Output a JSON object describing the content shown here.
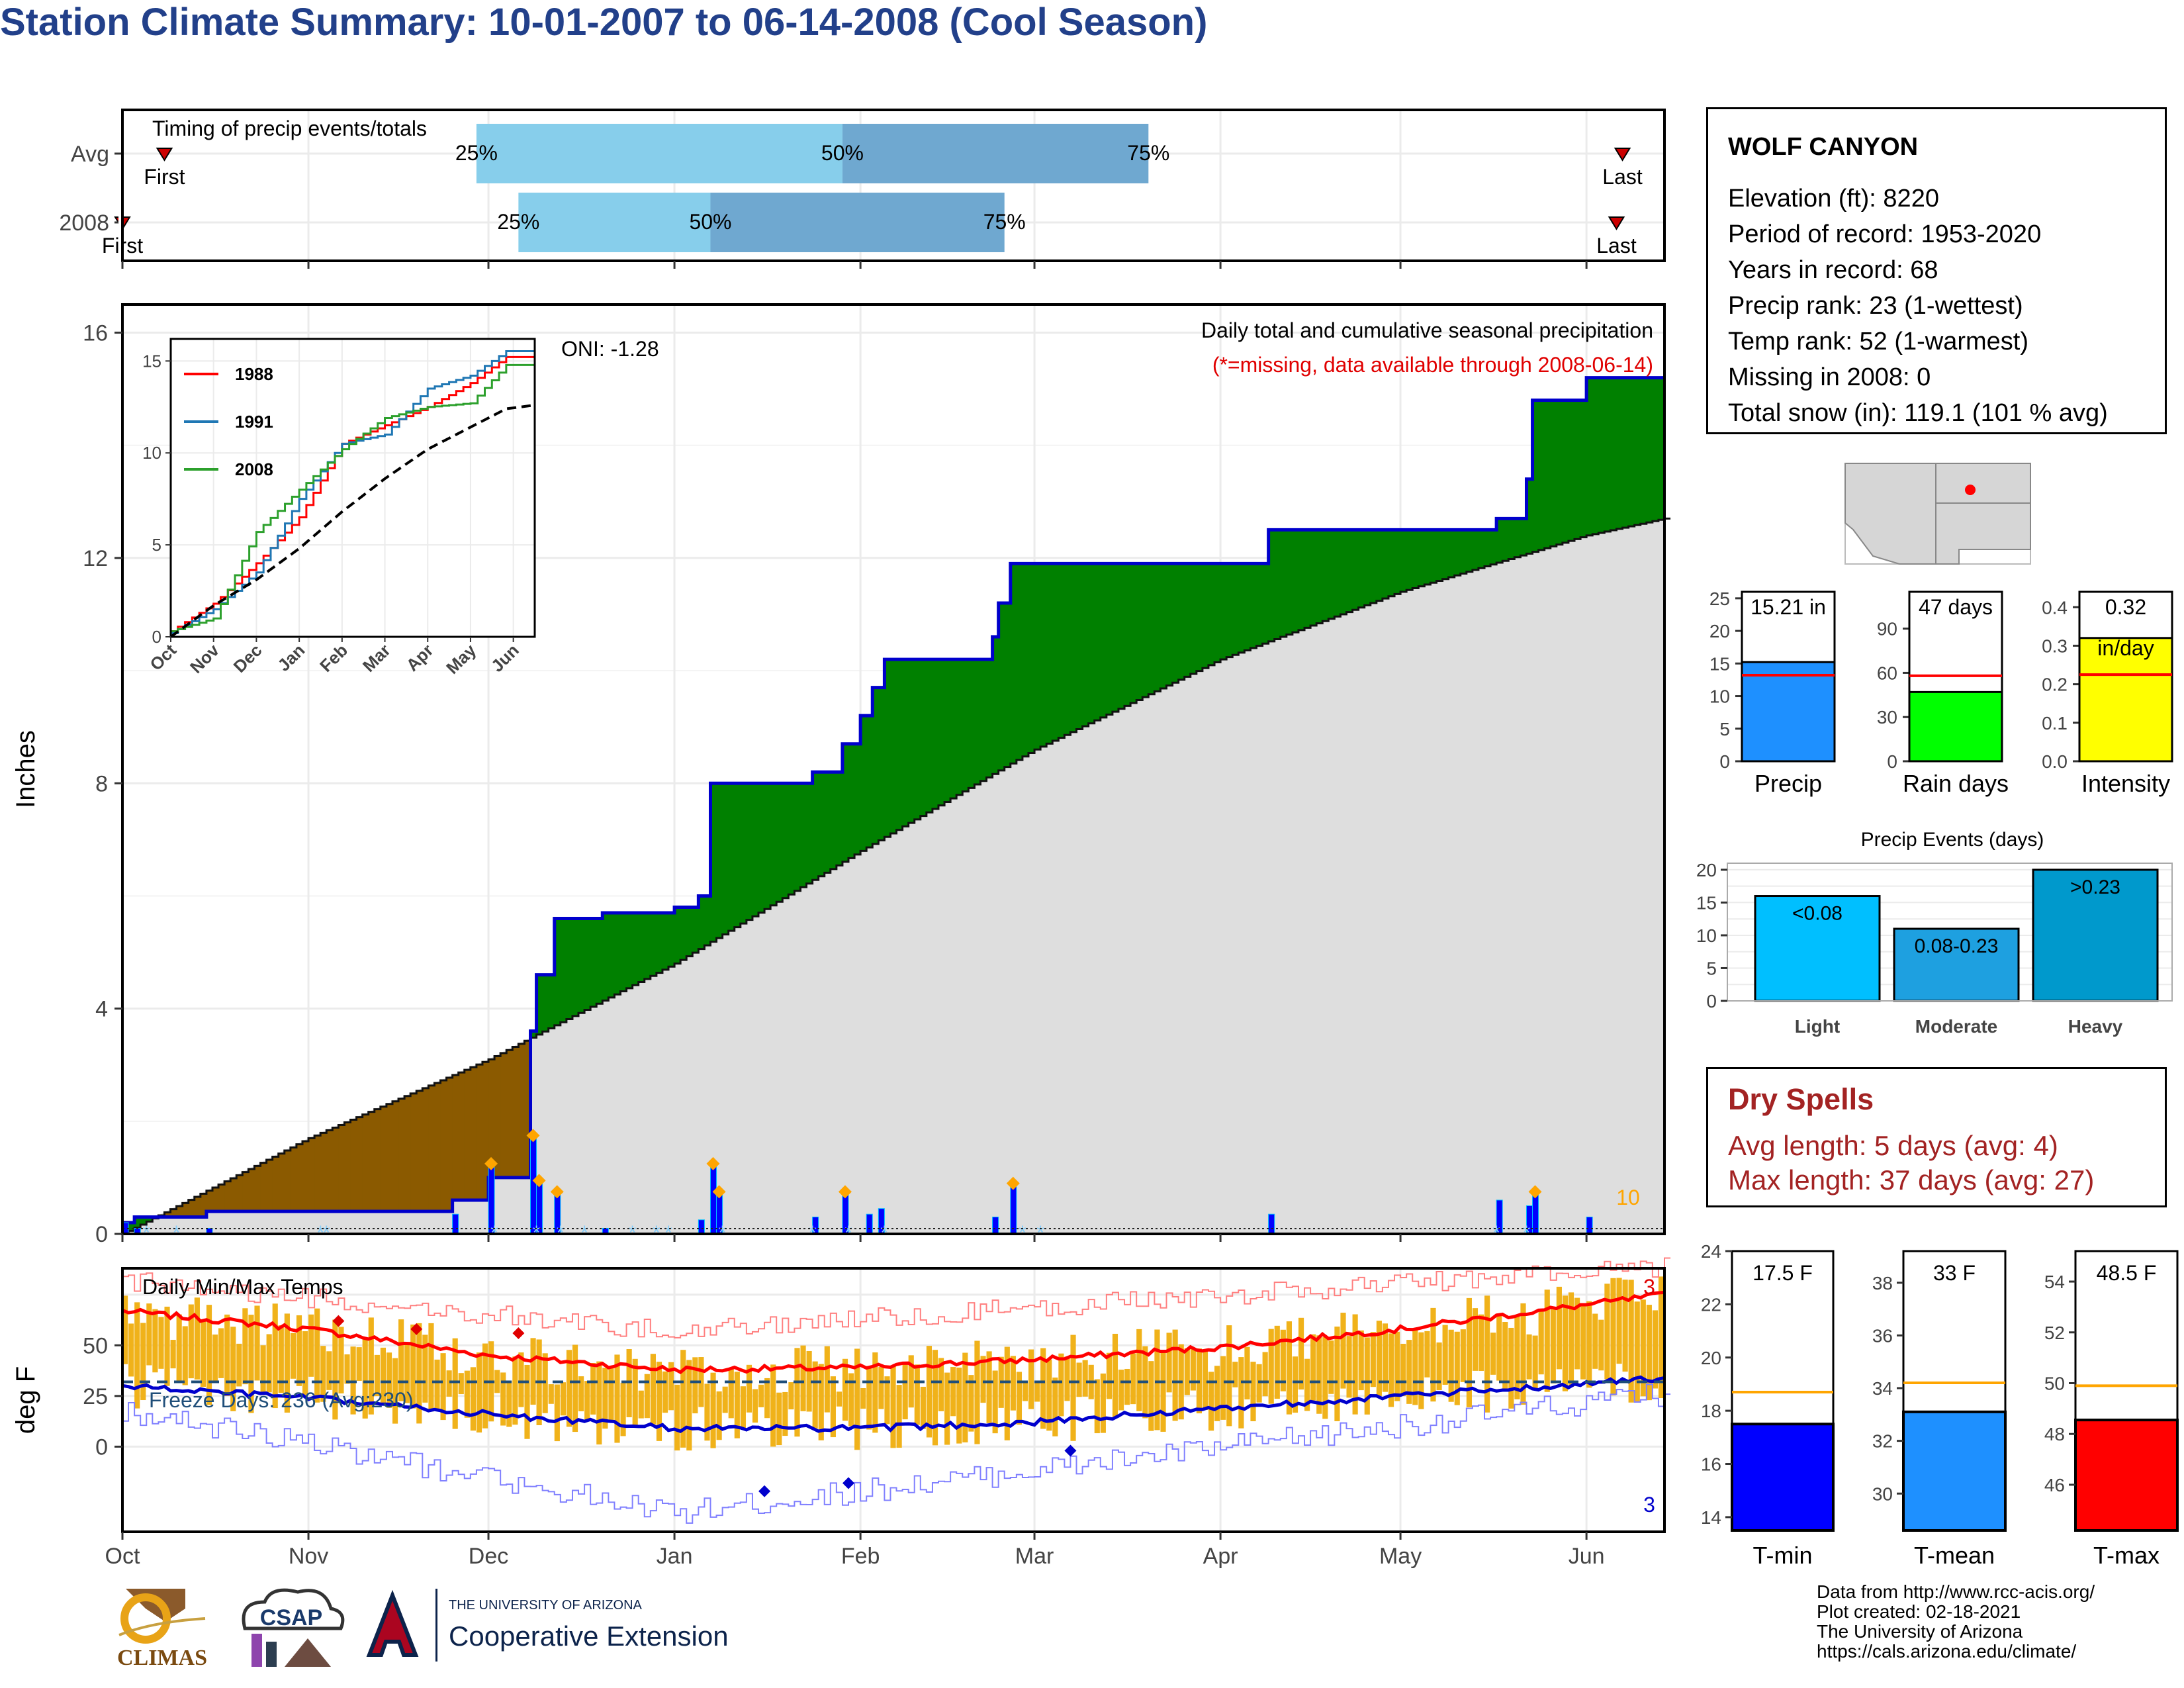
{
  "title": "Station Climate Summary: 10-01-2007 to 06-14-2008 (Cool Season)",
  "colors": {
    "title": "#22408a",
    "precip_green": "#008000",
    "precip_brown": "#8b5a00",
    "climo_gray": "#e0e0e0",
    "bar_blue": "#0000ff",
    "orange": "#ffa500",
    "red": "#ff0000",
    "blue": "#0000ff"
  },
  "timing": {
    "title": "Timing of precip events/totals",
    "rows": [
      {
        "label": "Avg",
        "p25": "25%",
        "p50": "50%",
        "p75": "75%",
        "first": "First",
        "last": "Last",
        "first_date": "2007-10-08",
        "p25_date": "2007-11-29",
        "p50_date": "2008-01-29",
        "p75_date": "2008-03-20",
        "last_date": "2008-06-07"
      },
      {
        "label": "2008",
        "p25": "25%",
        "p50": "50%",
        "p75": "75%",
        "first": "First",
        "last": "Last",
        "first_date": "2007-10-01",
        "p25_date": "2007-12-06",
        "p50_date": "2008-01-07",
        "p75_date": "2008-02-25",
        "last_date": "2008-06-06"
      }
    ]
  },
  "precip_panel": {
    "ylabel": "Inches",
    "yticks": [
      "0",
      "4",
      "8",
      "12",
      "16"
    ],
    "oni": "ONI: -1.28",
    "caption": "Daily total and cumulative seasonal precipitation",
    "missing_note": "(*=missing, data available through 2008-06-14)",
    "top_label": "10"
  },
  "inset": {
    "yticks": [
      "0",
      "5",
      "10",
      "15"
    ],
    "xticks": [
      "Oct",
      "Nov",
      "Dec",
      "Jan",
      "Feb",
      "Mar",
      "Apr",
      "May",
      "Jun"
    ],
    "legend": [
      {
        "name": "1988",
        "color": "#ff0000"
      },
      {
        "name": "1991",
        "color": "#1f77b4"
      },
      {
        "name": "2008",
        "color": "#2ca02c"
      }
    ]
  },
  "temp_panel": {
    "ylabel": "deg F",
    "title": "Daily Min/Max Temps",
    "yticks": [
      "0",
      "25",
      "50"
    ],
    "freeze": "Freeze Days: 236 (Avg:230)",
    "max_count": "3",
    "min_count": "3"
  },
  "xaxis": {
    "months": [
      "Oct",
      "Nov",
      "Dec",
      "Jan",
      "Feb",
      "Mar",
      "Apr",
      "May",
      "Jun"
    ]
  },
  "station": {
    "name": "WOLF CANYON",
    "lines": [
      "Elevation (ft): 8220",
      "Period of record: 1953-2020",
      "Years in record: 68",
      "Precip rank: 23 (1-wettest)",
      "Temp rank: 52 (1-warmest)",
      "Missing in 2008: 0",
      "Total snow (in): 119.1 (101 % avg)"
    ]
  },
  "small_bars": [
    {
      "name": "Precip",
      "label": "15.21 in",
      "value": 15.21,
      "avg": 13.2,
      "ymax": 26,
      "ticks": [
        "0",
        "5",
        "10",
        "15",
        "20",
        "25"
      ],
      "color": "#1e90ff"
    },
    {
      "name": "Rain days",
      "label": "47 days",
      "value": 47,
      "avg": 58,
      "ymax": 115,
      "ticks": [
        "0",
        "30",
        "60",
        "90"
      ],
      "color": "#00ff00"
    },
    {
      "name": "Intensity",
      "label": "0.32",
      "sublabel": "in/day",
      "value": 0.32,
      "avg": 0.225,
      "ymax": 0.44,
      "ticks": [
        "0.0",
        "0.1",
        "0.2",
        "0.3",
        "0.4"
      ],
      "color": "#ffff00"
    }
  ],
  "events": {
    "title": "Precip Events (days)",
    "ticks": [
      "0",
      "5",
      "10",
      "15",
      "20"
    ],
    "bars": [
      {
        "name": "Light",
        "label": "<0.08",
        "value": 16,
        "color": "#00bfff"
      },
      {
        "name": "Moderate",
        "label": "0.08-0.23",
        "value": 11,
        "color": "#1ea0e0"
      },
      {
        "name": "Heavy",
        "label": ">0.23",
        "value": 20,
        "color": "#0099cc"
      }
    ]
  },
  "dry_spells": {
    "title": "Dry Spells",
    "avg": "Avg length: 5 days (avg: 4)",
    "max": "Max length: 37 days (avg: 27)"
  },
  "temp_bars": [
    {
      "name": "T-min",
      "label": "17.5 F",
      "value": 17.5,
      "avg": 18.7,
      "ymin": 13.5,
      "ymax": 24,
      "ticks": [
        "14",
        "16",
        "18",
        "20",
        "22",
        "24"
      ],
      "color": "#0000ff"
    },
    {
      "name": "T-mean",
      "label": "33 F",
      "value": 33.1,
      "avg": 34.2,
      "ymin": 28.6,
      "ymax": 39.2,
      "ticks": [
        "30",
        "32",
        "34",
        "36",
        "38"
      ],
      "color": "#1e90ff"
    },
    {
      "name": "T-max",
      "label": "48.5 F",
      "value": 48.55,
      "avg": 49.9,
      "ymin": 44.2,
      "ymax": 55.2,
      "ticks": [
        "46",
        "48",
        "50",
        "52",
        "54"
      ],
      "color": "#ff0000"
    }
  ],
  "footer": [
    "Data from http://www.rcc-acis.org/",
    "Plot created: 02-18-2021",
    "The University of Arizona",
    "https://cals.arizona.edu/climate/"
  ],
  "logos": {
    "climas": "CLIMAS",
    "csap": "CSAP",
    "ua_small": "THE UNIVERSITY OF ARIZONA",
    "ua_big": "Cooperative Extension"
  },
  "chart_data": [
    {
      "type": "area",
      "title": "Daily total and cumulative seasonal precipitation",
      "ylabel": "Inches",
      "ylim": [
        0,
        16.5
      ],
      "x_range": [
        "2007-10-01",
        "2008-06-14"
      ],
      "series": [
        {
          "name": "2008",
          "x": [
            "2007-10-01",
            "2007-10-03",
            "2007-10-15",
            "2007-11-25",
            "2007-12-01",
            "2007-12-08",
            "2007-12-09",
            "2007-12-12",
            "2007-12-20",
            "2008-01-01",
            "2008-01-05",
            "2008-01-07",
            "2008-01-24",
            "2008-01-29",
            "2008-02-01",
            "2008-02-03",
            "2008-02-05",
            "2008-02-23",
            "2008-02-24",
            "2008-02-26",
            "2008-04-09",
            "2008-05-17",
            "2008-05-22",
            "2008-05-23",
            "2008-06-01",
            "2008-06-14"
          ],
          "values": [
            0.2,
            0.3,
            0.4,
            0.6,
            1.0,
            3.6,
            4.6,
            5.6,
            5.7,
            5.8,
            6.0,
            8.0,
            8.2,
            8.7,
            9.2,
            9.7,
            10.2,
            10.6,
            11.2,
            11.9,
            12.5,
            12.7,
            13.4,
            14.8,
            15.2,
            15.2
          ]
        },
        {
          "name": "Average",
          "x": [
            "2007-10-01",
            "2007-11-01",
            "2007-12-01",
            "2008-01-01",
            "2008-02-01",
            "2008-03-01",
            "2008-04-01",
            "2008-05-01",
            "2008-06-01",
            "2008-06-14"
          ],
          "values": [
            0,
            1.7,
            3.1,
            4.8,
            6.8,
            8.6,
            10.2,
            11.4,
            12.4,
            12.7
          ]
        }
      ]
    },
    {
      "type": "line",
      "title": "Daily Min/Max Temps",
      "ylabel": "deg F",
      "ylim": [
        -42,
        88
      ],
      "series": [
        {
          "name": "Avg max",
          "x": [
            "2007-10-01",
            "2007-11-01",
            "2007-12-01",
            "2008-01-01",
            "2008-02-01",
            "2008-03-01",
            "2008-04-01",
            "2008-05-01",
            "2008-06-01",
            "2008-06-14"
          ],
          "values": [
            67,
            58,
            45,
            38,
            39,
            43,
            49,
            58,
            70,
            75
          ]
        },
        {
          "name": "Avg min",
          "x": [
            "2007-10-01",
            "2007-11-01",
            "2007-12-01",
            "2008-01-01",
            "2008-02-01",
            "2008-03-01",
            "2008-04-01",
            "2008-05-01",
            "2008-06-01",
            "2008-06-14"
          ],
          "values": [
            30,
            24,
            16,
            9,
            9,
            12,
            19,
            25,
            31,
            34
          ]
        },
        {
          "name": "Record max",
          "x": [
            "2007-10-01",
            "2008-01-01",
            "2008-06-14"
          ],
          "values": [
            82,
            57,
            89
          ]
        },
        {
          "name": "Record min",
          "x": [
            "2007-10-01",
            "2008-01-01",
            "2008-06-14"
          ],
          "values": [
            18,
            -33,
            26
          ]
        }
      ],
      "hline": 32
    },
    {
      "type": "line",
      "title": "",
      "x": [
        "Oct",
        "Nov",
        "Dec",
        "Jan",
        "Feb",
        "Mar",
        "Apr",
        "May",
        "Jun"
      ],
      "series": [
        {
          "name": "1988",
          "values": [
            0.3,
            1.8,
            4,
            6.5,
            10.5,
            11.5,
            12.5,
            13.8,
            15.5
          ]
        },
        {
          "name": "1991",
          "values": [
            0.2,
            1.5,
            3.5,
            7.5,
            10.5,
            11,
            13.5,
            14.2,
            15.8
          ]
        },
        {
          "name": "2008",
          "values": [
            0.3,
            1.0,
            5.7,
            8.0,
            10.2,
            11.9,
            12.5,
            12.7,
            15.2
          ]
        },
        {
          "name": "Average",
          "values": [
            0,
            1.7,
            3.1,
            4.8,
            6.8,
            8.6,
            10.2,
            11.4,
            12.6
          ]
        }
      ]
    }
  ]
}
